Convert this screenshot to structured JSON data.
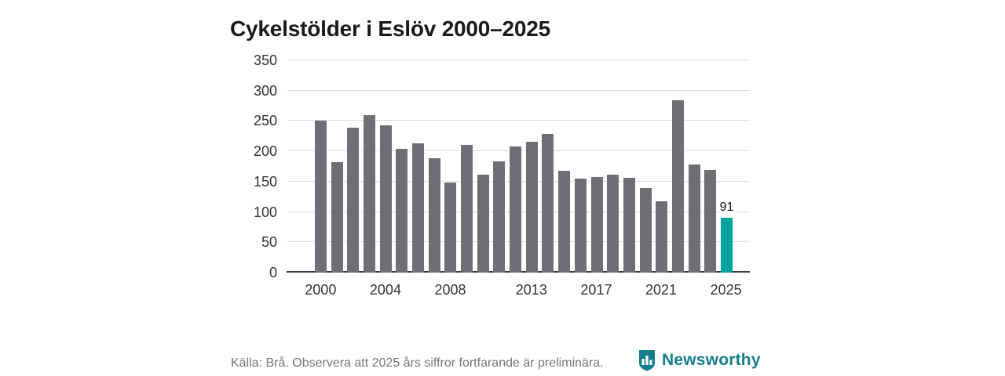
{
  "title": "Cykelstölder i Eslöv 2000–2025",
  "footer": {
    "source_text": "Källa: Brå. Observera att 2025 års siffror fortfarande är preliminära.",
    "brand": "Newsworthy"
  },
  "colors": {
    "bar": "#6e6e74",
    "highlight": "#00a3a0",
    "brand_teal": "#157d8c",
    "gridline": "#dcdcdc",
    "axis": "#3a3a3a"
  },
  "chart_data": {
    "type": "bar",
    "title": "Cykelstölder i Eslöv 2000–2025",
    "x": [
      2000,
      2001,
      2002,
      2003,
      2004,
      2005,
      2006,
      2007,
      2008,
      2009,
      2010,
      2011,
      2012,
      2013,
      2014,
      2015,
      2016,
      2017,
      2018,
      2019,
      2020,
      2021,
      2022,
      2023,
      2024,
      2025
    ],
    "values": [
      250,
      182,
      239,
      259,
      243,
      204,
      213,
      188,
      149,
      210,
      162,
      183,
      208,
      216,
      228,
      168,
      155,
      158,
      161,
      156,
      140,
      117,
      284,
      178,
      169,
      91
    ],
    "highlight_index": 25,
    "value_labels": [
      {
        "x": 2025,
        "label": "91"
      }
    ],
    "xlabel": "",
    "ylabel": "",
    "ylim": [
      0,
      350
    ],
    "yticks": [
      0,
      50,
      100,
      150,
      200,
      250,
      300,
      350
    ],
    "xticks": [
      2000,
      2004,
      2008,
      2013,
      2017,
      2021,
      2025
    ],
    "grid": true,
    "legend": false
  }
}
